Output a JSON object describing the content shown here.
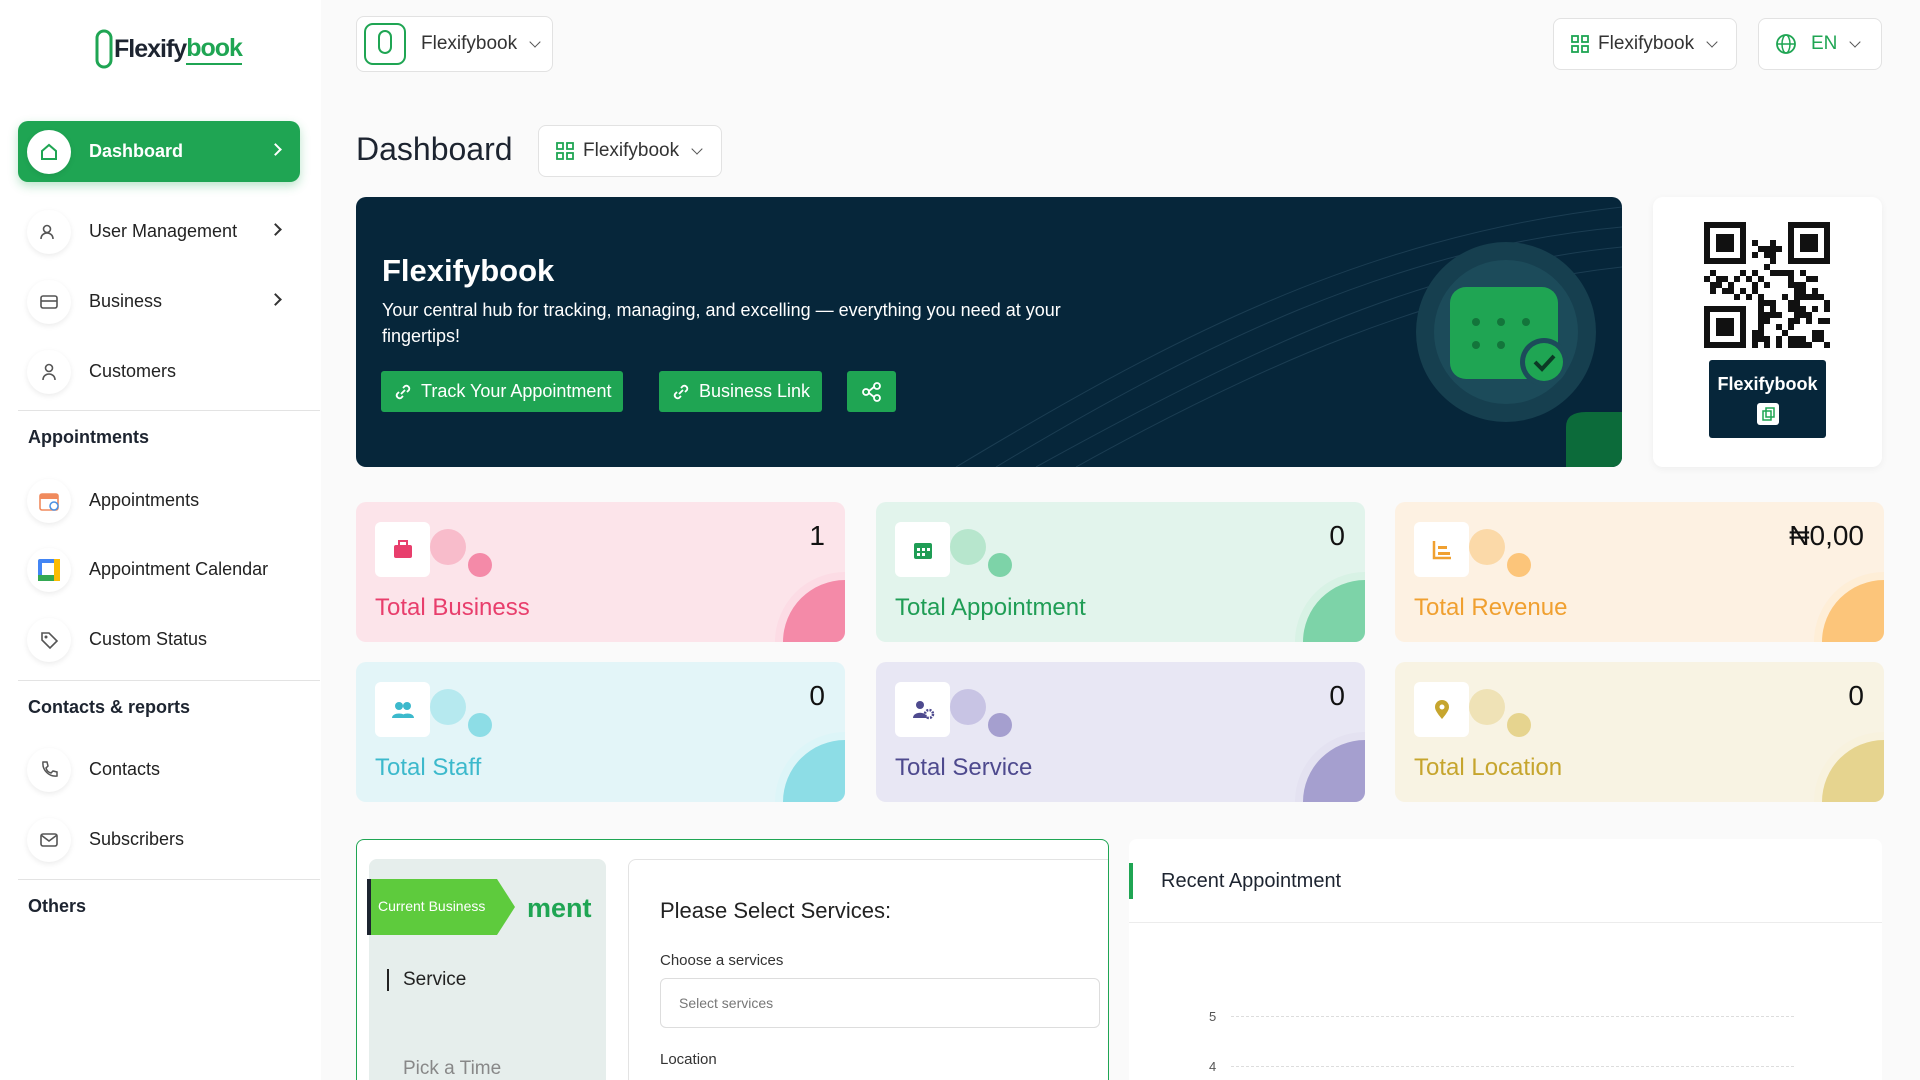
{
  "sidebar": {
    "logo": {
      "part1": "Flexify",
      "part2": "book"
    },
    "nav": [
      "Dashboard",
      "User Management",
      "Business",
      "Customers"
    ],
    "sections": [
      {
        "title": "Appointments",
        "items": [
          "Appointments",
          "Appointment Calendar",
          "Custom Status"
        ]
      },
      {
        "title": "Contacts & reports",
        "items": [
          "Contacts",
          "Subscribers"
        ]
      },
      {
        "title": "Others"
      }
    ]
  },
  "header": {
    "business_selector": "Flexifybook",
    "workspace_selector": "Flexifybook",
    "language": "EN"
  },
  "page": {
    "title": "Dashboard",
    "business_filter": "Flexifybook"
  },
  "banner": {
    "title": "Flexifybook",
    "subtitle": "Your central hub for tracking, managing, and excelling — everything you need at your fingertips!",
    "buttons": [
      "Track Your Appointment",
      "Business Link"
    ]
  },
  "qr_card": {
    "name": "Flexifybook"
  },
  "stats": [
    {
      "label": "Total Business",
      "value": "1"
    },
    {
      "label": "Total Appointment",
      "value": "0"
    },
    {
      "label": "Total Revenue",
      "value": "₦0,00"
    },
    {
      "label": "Total Staff",
      "value": "0"
    },
    {
      "label": "Total Service",
      "value": "0"
    },
    {
      "label": "Total Location",
      "value": "0"
    }
  ],
  "booking_widget": {
    "tag": "Current Business",
    "heading_fragment": "ment",
    "steps": [
      "Service",
      "Pick a Time"
    ],
    "form_title": "Please Select Services:",
    "fields": [
      {
        "label": "Choose a services",
        "placeholder": "Select services"
      },
      {
        "label": "Location"
      }
    ]
  },
  "recent_appointment": {
    "title": "Recent Appointment",
    "yticks": [
      5,
      4
    ]
  }
}
